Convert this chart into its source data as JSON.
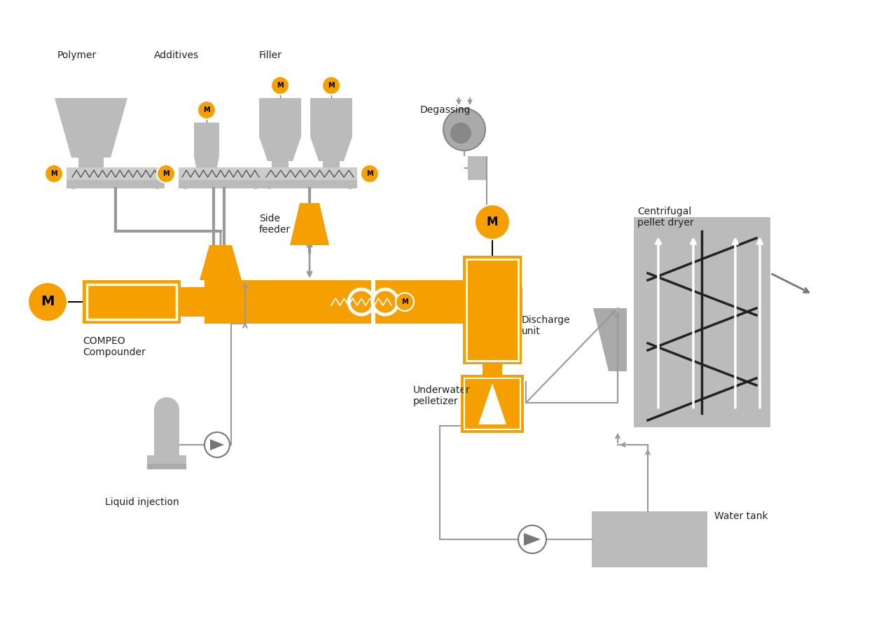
{
  "bg_color": "#ffffff",
  "orange": "#F5A000",
  "gray": "#AAAAAA",
  "gray_dark": "#777777",
  "gray_light": "#BBBBBB",
  "gray_mid": "#999999",
  "text_color": "#222222",
  "labels": {
    "polymer": "Polymer",
    "additives": "Additives",
    "filler": "Filler",
    "side_feeder": "Side\nfeeder",
    "degassing": "Degassing",
    "discharge_unit": "Discharge\nunit",
    "compeo": "COMPEO\nCompounder",
    "underwater": "Underwater\npelletizer",
    "liquid_injection": "Liquid injection",
    "centrifugal": "Centrifugal\npellet dryer",
    "water_tank": "Water tank"
  },
  "figsize": [
    12.48,
    9.08
  ],
  "dpi": 100
}
